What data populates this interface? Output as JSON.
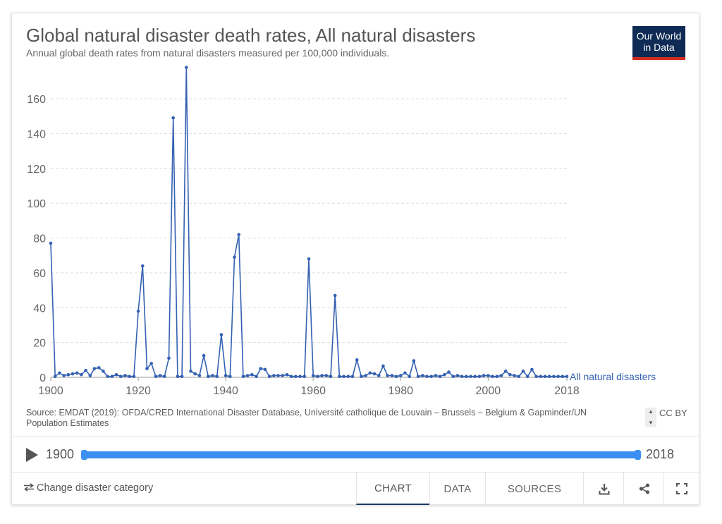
{
  "header": {
    "title": "Global natural disaster death rates, All natural disasters",
    "subtitle": "Annual global death rates from natural disasters measured per 100,000 individuals.",
    "logo_line1": "Our World",
    "logo_line2": "in Data"
  },
  "chart_data": {
    "type": "line",
    "title": "Global natural disaster death rates, All natural disasters",
    "subtitle": "Annual global death rates from natural disasters measured per 100,000 individuals.",
    "xlabel": "",
    "ylabel": "",
    "xlim": [
      1900,
      2018
    ],
    "ylim": [
      0,
      175
    ],
    "x_ticks": [
      1900,
      1920,
      1940,
      1960,
      1980,
      2000,
      2018
    ],
    "y_ticks": [
      0,
      20,
      40,
      60,
      80,
      100,
      120,
      140,
      160
    ],
    "grid": "horizontal dashed",
    "series_color": "#3461b2",
    "series": [
      {
        "name": "All natural disasters",
        "x": [
          1900,
          1901,
          1902,
          1903,
          1904,
          1905,
          1906,
          1907,
          1908,
          1909,
          1910,
          1911,
          1912,
          1913,
          1914,
          1915,
          1916,
          1917,
          1918,
          1919,
          1920,
          1921,
          1922,
          1923,
          1924,
          1925,
          1926,
          1927,
          1928,
          1929,
          1930,
          1931,
          1932,
          1933,
          1934,
          1935,
          1936,
          1937,
          1938,
          1939,
          1940,
          1941,
          1942,
          1943,
          1944,
          1945,
          1946,
          1947,
          1948,
          1949,
          1950,
          1951,
          1952,
          1953,
          1954,
          1955,
          1956,
          1957,
          1958,
          1959,
          1960,
          1961,
          1962,
          1963,
          1964,
          1965,
          1966,
          1967,
          1968,
          1969,
          1970,
          1971,
          1972,
          1973,
          1974,
          1975,
          1976,
          1977,
          1978,
          1979,
          1980,
          1981,
          1982,
          1983,
          1984,
          1985,
          1986,
          1987,
          1988,
          1989,
          1990,
          1991,
          1992,
          1993,
          1994,
          1995,
          1996,
          1997,
          1998,
          1999,
          2000,
          2001,
          2002,
          2003,
          2004,
          2005,
          2006,
          2007,
          2008,
          2009,
          2010,
          2011,
          2012,
          2013,
          2014,
          2015,
          2016,
          2017,
          2018
        ],
        "values": [
          77,
          0.5,
          2.5,
          1,
          1.5,
          2,
          2.5,
          1.5,
          4,
          1,
          5,
          5.5,
          3.5,
          0.5,
          0.5,
          1.5,
          0.5,
          1,
          0.5,
          0.5,
          38,
          64,
          5,
          8,
          0.5,
          1,
          0.5,
          11,
          149,
          0.5,
          0.5,
          178,
          3.5,
          2,
          1,
          12.5,
          0.5,
          1,
          0.5,
          24.5,
          1,
          0.5,
          69,
          82,
          0.5,
          1,
          1.5,
          0.5,
          5,
          4.5,
          0.5,
          1,
          1,
          1,
          1.5,
          0.5,
          0.5,
          0.5,
          0.5,
          68,
          1,
          0.5,
          1,
          1,
          0.5,
          47,
          0.5,
          0.5,
          0.5,
          0.5,
          10,
          0.5,
          1,
          2.5,
          2,
          1,
          6.5,
          1,
          1,
          0.5,
          1,
          2.5,
          0.5,
          9.5,
          0.5,
          1,
          0.5,
          0.5,
          1,
          0.5,
          1.5,
          3,
          0.5,
          1,
          0.5,
          0.5,
          0.5,
          0.5,
          0.5,
          1,
          1,
          0.5,
          0.5,
          1,
          3.5,
          1.5,
          1,
          0.5,
          3.5,
          0.5,
          4.5,
          0.5,
          0.5,
          0.5,
          0.5,
          0.5,
          0.5,
          0.5,
          0.5
        ]
      }
    ]
  },
  "source": {
    "text": "Source: EMDAT (2019): OFDA/CRED International Disaster Database, Université catholique de Louvain – Brussels – Belgium & Gapminder/UN Population Estimates",
    "license": "CC BY"
  },
  "timeline": {
    "start": "1900",
    "end": "2018"
  },
  "footer": {
    "change_label": "Change disaster category",
    "tabs": [
      {
        "label": "CHART"
      },
      {
        "label": "DATA"
      },
      {
        "label": "SOURCES"
      }
    ]
  },
  "icons": [
    "play-icon",
    "swap-icon",
    "download-icon",
    "share-icon",
    "fullscreen-icon"
  ]
}
